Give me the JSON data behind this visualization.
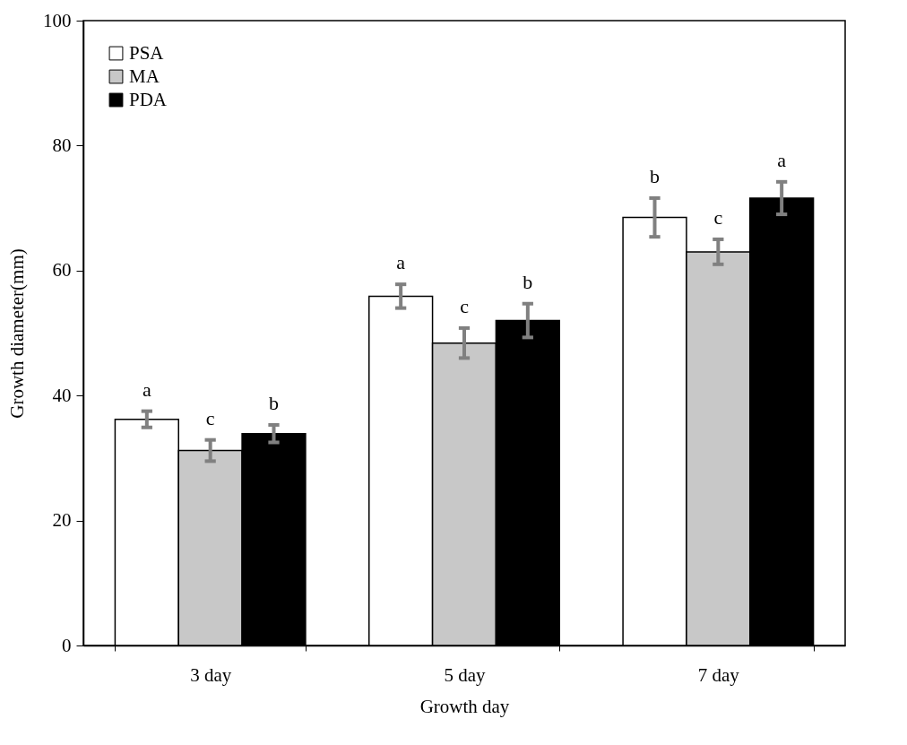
{
  "chart_data": {
    "type": "bar",
    "xlabel": "Growth day",
    "ylabel": "Growth diameter(mm)",
    "categories": [
      "3 day",
      "5 day",
      "7 day"
    ],
    "series": [
      {
        "name": "PSA",
        "color": "#ffffff",
        "values": [
          36.2,
          55.9,
          68.5
        ],
        "errors": [
          1.3,
          1.9,
          3.1
        ]
      },
      {
        "name": "MA",
        "color": "#c8c8c8",
        "values": [
          31.2,
          48.4,
          63.0
        ],
        "errors": [
          1.7,
          2.4,
          2.0
        ]
      },
      {
        "name": "PDA",
        "color": "#000000",
        "values": [
          33.9,
          52.0,
          71.6
        ],
        "errors": [
          1.4,
          2.7,
          2.6
        ]
      }
    ],
    "annotations": [
      "a",
      "c",
      "b",
      "a",
      "c",
      "b",
      "b",
      "c",
      "a"
    ],
    "ylim": [
      0,
      100
    ],
    "yticks": [
      0,
      20,
      40,
      60,
      80,
      100
    ],
    "grid": false,
    "legend": "top left"
  }
}
